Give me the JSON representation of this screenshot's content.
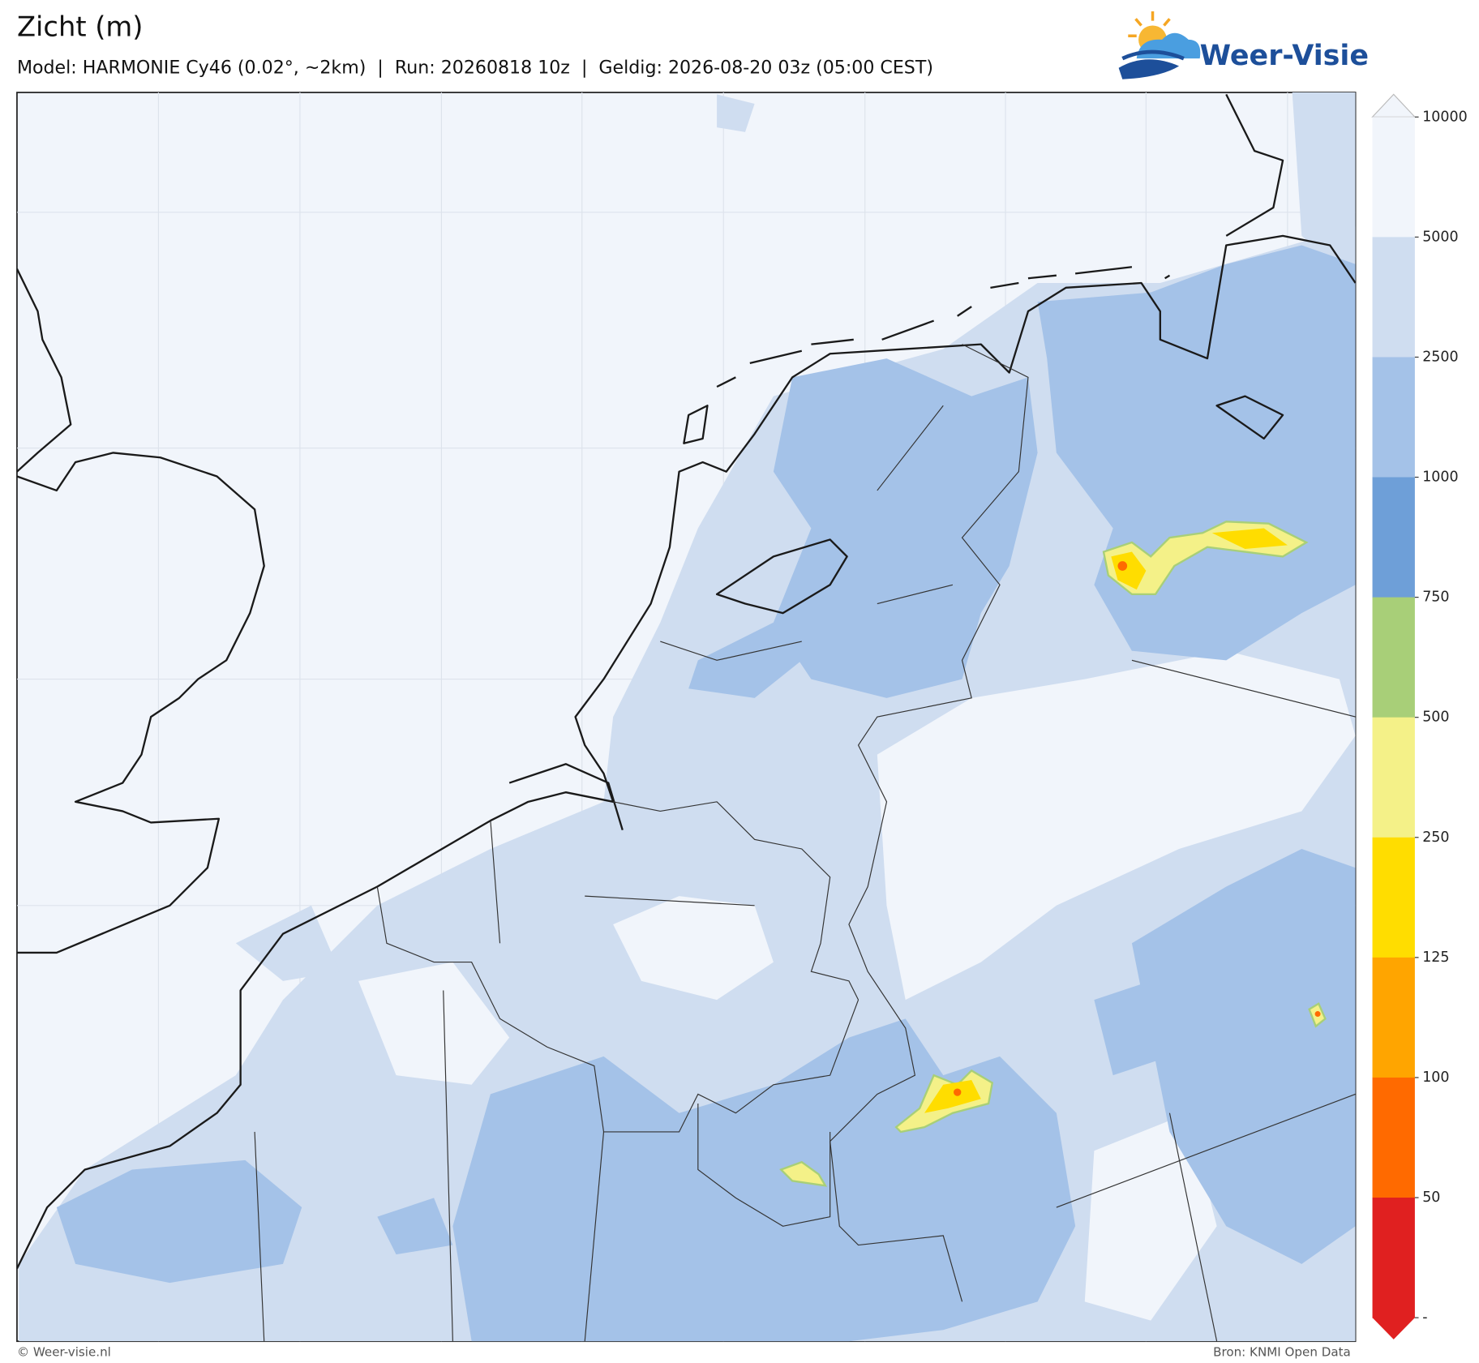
{
  "header": {
    "title": "Zicht (m)",
    "subtitle": "Model: HARMONIE Cy46 (0.02°, ~2km)  |  Run: 20260818 10z  |  Geldig: 2026-08-20 03z (05:00 CEST)",
    "logo": "Weer-Visie"
  },
  "colorbar": {
    "labels": [
      "10000",
      "5000",
      "2500",
      "1000",
      "750",
      "500",
      "250",
      "125",
      "100",
      "50",
      "-"
    ],
    "colors": [
      "#f1f5fb",
      "#cfddf0",
      "#a4c2e8",
      "#6e9fd8",
      "#a8cf78",
      "#f4f188",
      "#ffdd00",
      "#ffa500",
      "#ff6a00",
      "#e02020"
    ]
  },
  "footer": {
    "left": "© Weer-visie.nl",
    "right": "Bron: KNMI Open Data"
  }
}
